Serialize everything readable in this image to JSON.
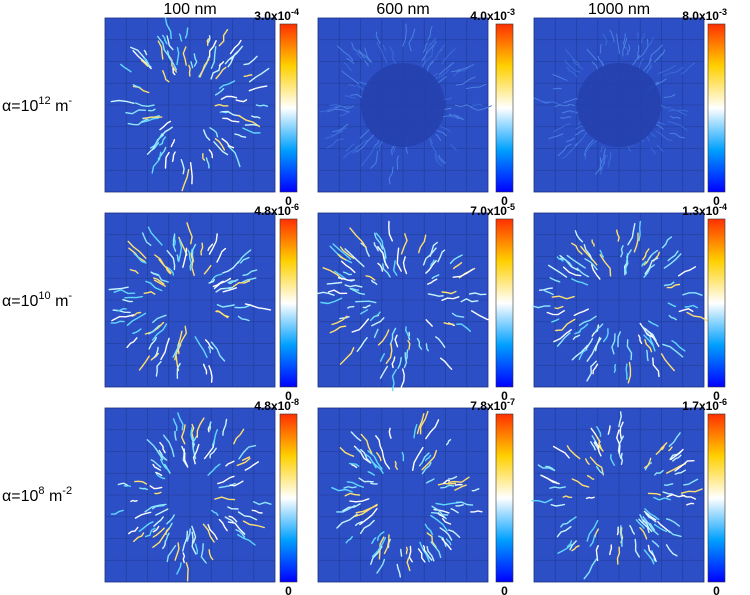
{
  "columns": [
    "100 nm",
    "600 nm",
    "1000 nm"
  ],
  "rows": [
    {
      "label": {
        "prefix": "α=10",
        "exponent": "12",
        "unit": " m",
        "unit_exponent": "-"
      },
      "colorbars": [
        {
          "max": {
            "mantissa": "3.0x10",
            "exponent": "-4"
          },
          "min": "0"
        },
        {
          "max": {
            "mantissa": "4.0x10",
            "exponent": "-3"
          },
          "min": "0"
        },
        {
          "max": {
            "mantissa": "8.0x10",
            "exponent": "-3"
          },
          "min": "0"
        }
      ]
    },
    {
      "label": {
        "prefix": "α=10",
        "exponent": "10",
        "unit": " m",
        "unit_exponent": "-"
      },
      "colorbars": [
        {
          "max": {
            "mantissa": "4.8x10",
            "exponent": "-6"
          },
          "min": "0"
        },
        {
          "max": {
            "mantissa": "7.0x10",
            "exponent": "-5"
          },
          "min": "0"
        },
        {
          "max": {
            "mantissa": "1.3x10",
            "exponent": "-4"
          },
          "min": "0"
        }
      ]
    },
    {
      "label": {
        "prefix": "α=10",
        "exponent": "8",
        "unit": " m",
        "unit_exponent": "-2"
      },
      "colorbars": [
        {
          "max": {
            "mantissa": "4.8x10",
            "exponent": "-8"
          },
          "min": "0"
        },
        {
          "max": {
            "mantissa": "7.8x10",
            "exponent": "-7"
          },
          "min": "0"
        },
        {
          "max": {
            "mantissa": "1.7x10",
            "exponent": "-6"
          },
          "min": "0"
        }
      ]
    }
  ]
}
